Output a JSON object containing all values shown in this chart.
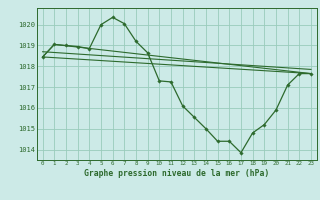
{
  "title": "Graphe pression niveau de la mer (hPa)",
  "bg_color": "#cceae7",
  "grid_color": "#99ccbb",
  "line_color": "#2d6a2d",
  "text_color": "#2d6a2d",
  "xlim": [
    -0.5,
    23.5
  ],
  "ylim": [
    1013.5,
    1020.8
  ],
  "yticks": [
    1014,
    1015,
    1016,
    1017,
    1018,
    1019,
    1020
  ],
  "xticks": [
    0,
    1,
    2,
    3,
    4,
    5,
    6,
    7,
    8,
    9,
    10,
    11,
    12,
    13,
    14,
    15,
    16,
    17,
    18,
    19,
    20,
    21,
    22,
    23
  ],
  "series_main": {
    "x": [
      0,
      1,
      2,
      3,
      4,
      5,
      6,
      7,
      8,
      9,
      10,
      11,
      12,
      13,
      14,
      15,
      16,
      17,
      18,
      19,
      20,
      21,
      22,
      23
    ],
    "y": [
      1018.45,
      1019.05,
      1019.0,
      1018.95,
      1018.85,
      1020.0,
      1020.35,
      1020.05,
      1019.2,
      1018.65,
      1017.3,
      1017.25,
      1016.1,
      1015.55,
      1015.0,
      1014.4,
      1014.4,
      1013.85,
      1014.8,
      1015.2,
      1015.9,
      1017.1,
      1017.65,
      1017.65
    ]
  },
  "series_line1": {
    "x": [
      0,
      23
    ],
    "y": [
      1018.45,
      1017.65
    ]
  },
  "series_line2": {
    "x": [
      0,
      23
    ],
    "y": [
      1018.7,
      1017.85
    ]
  },
  "series_line3": {
    "x": [
      0,
      1,
      23
    ],
    "y": [
      1018.45,
      1019.05,
      1017.65
    ]
  }
}
